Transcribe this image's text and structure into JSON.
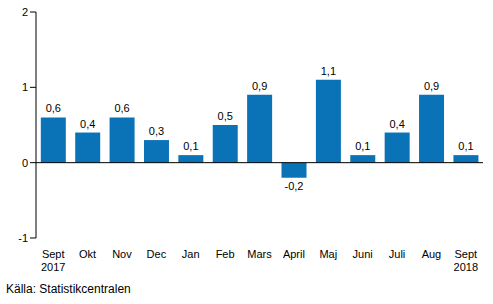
{
  "chart_data": {
    "type": "bar",
    "categories": [
      "Sept\n2017",
      "Okt",
      "Nov",
      "Dec",
      "Jan",
      "Feb",
      "Mars",
      "April",
      "Maj",
      "Juni",
      "Juli",
      "Aug",
      "Sept\n2018"
    ],
    "values": [
      0.6,
      0.4,
      0.6,
      0.3,
      0.1,
      0.5,
      0.9,
      -0.2,
      1.1,
      0.1,
      0.4,
      0.9,
      0.1
    ],
    "value_labels": [
      "0,6",
      "0,4",
      "0,6",
      "0,3",
      "0,1",
      "0,5",
      "0,9",
      "-0,2",
      "1,1",
      "0,1",
      "0,4",
      "0,9",
      "0,1"
    ],
    "data_labels": true,
    "color": "#0a72b6",
    "ylim": [
      -1,
      2
    ],
    "yticks": [
      -1,
      0,
      1,
      2
    ],
    "grid": false,
    "source": "Källa: Statistikcentralen"
  }
}
